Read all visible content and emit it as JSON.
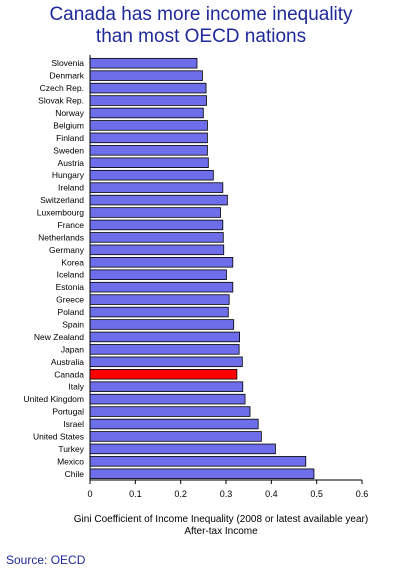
{
  "chart_data": {
    "type": "bar",
    "orientation": "horizontal",
    "title": [
      "Canada has more income inequality",
      "than most OECD nations"
    ],
    "xlabel": [
      "Gini Coefficient of Income Inequality (2008 or latest available year)",
      "After-tax Income"
    ],
    "xlim": [
      0,
      0.6
    ],
    "xticks": [
      "0",
      "0.1",
      "0.2",
      "0.3",
      "0.4",
      "0.5",
      "0.6"
    ],
    "categories": [
      "Slovenia",
      "Denmark",
      "Czech Rep.",
      "Slovak Rep.",
      "Norway",
      "Belgium",
      "Finland",
      "Sweden",
      "Austria",
      "Hungary",
      "Ireland",
      "Switzerland",
      "Luxembourg",
      "France",
      "Netherlands",
      "Germany",
      "Korea",
      "Iceland",
      "Estonia",
      "Greece",
      "Poland",
      "Spain",
      "New Zealand",
      "Japan",
      "Australia",
      "Canada",
      "Italy",
      "United Kingdom",
      "Portugal",
      "Israel",
      "United States",
      "Turkey",
      "Mexico",
      "Chile"
    ],
    "values": [
      0.236,
      0.248,
      0.256,
      0.257,
      0.25,
      0.259,
      0.259,
      0.259,
      0.261,
      0.272,
      0.293,
      0.303,
      0.288,
      0.293,
      0.294,
      0.295,
      0.315,
      0.301,
      0.315,
      0.307,
      0.305,
      0.317,
      0.33,
      0.329,
      0.336,
      0.324,
      0.337,
      0.342,
      0.353,
      0.371,
      0.378,
      0.409,
      0.476,
      0.494
    ],
    "highlight": "Canada",
    "bar_color": "#6e6eea",
    "highlight_color": "#ff0000",
    "grid": false
  },
  "source": "Source: OECD"
}
